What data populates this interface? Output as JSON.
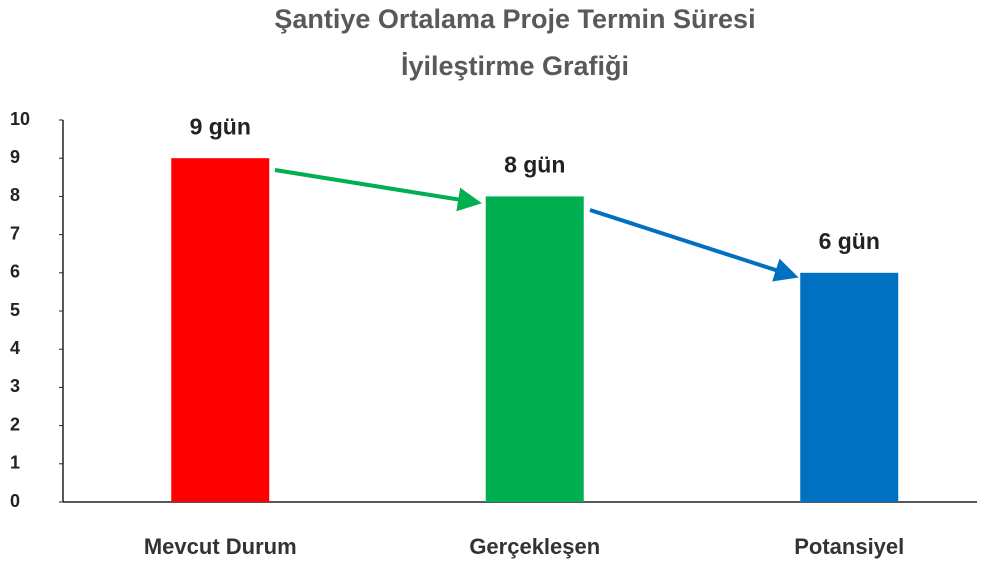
{
  "chart_data": {
    "type": "bar",
    "title": [
      "Şantiye Ortalama Proje Termin Süresi",
      "İyileştirme Grafiği"
    ],
    "categories": [
      "Mevcut Durum",
      "Gerçekleşen",
      "Potansiyel"
    ],
    "values": [
      9,
      8,
      6
    ],
    "value_labels": [
      "9 gün",
      "8 gün",
      "6 gün"
    ],
    "colors": [
      "#ff0000",
      "#00b050",
      "#0070c0"
    ],
    "ylim": [
      0,
      10
    ],
    "yticks": [
      0,
      1,
      2,
      3,
      4,
      5,
      6,
      7,
      8,
      9,
      10
    ],
    "grid": false
  }
}
